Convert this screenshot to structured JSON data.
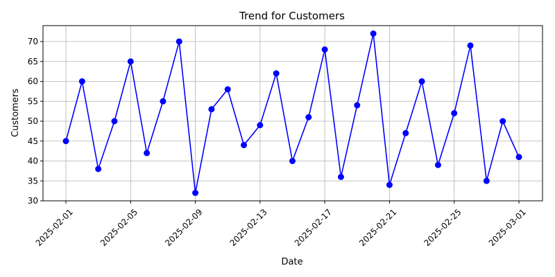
{
  "chart_data": {
    "type": "line",
    "title": "Trend for Customers",
    "xlabel": "Date",
    "ylabel": "Customers",
    "x": [
      "2025-02-01",
      "2025-02-02",
      "2025-02-03",
      "2025-02-04",
      "2025-02-05",
      "2025-02-06",
      "2025-02-07",
      "2025-02-08",
      "2025-02-09",
      "2025-02-10",
      "2025-02-11",
      "2025-02-12",
      "2025-02-13",
      "2025-02-14",
      "2025-02-15",
      "2025-02-16",
      "2025-02-17",
      "2025-02-18",
      "2025-02-19",
      "2025-02-20",
      "2025-02-21",
      "2025-02-22",
      "2025-02-23",
      "2025-02-24",
      "2025-02-25",
      "2025-02-26",
      "2025-02-27",
      "2025-02-28",
      "2025-03-01"
    ],
    "series": [
      {
        "values": [
          45,
          60,
          38,
          50,
          65,
          42,
          55,
          70,
          32,
          53,
          58,
          44,
          49,
          62,
          40,
          51,
          68,
          36,
          54,
          72,
          34,
          47,
          60,
          39,
          52,
          69,
          35,
          50,
          41
        ],
        "color": "#0000ff",
        "marker": "circle"
      }
    ],
    "x_ticks": [
      "2025-02-01",
      "2025-02-05",
      "2025-02-09",
      "2025-02-13",
      "2025-02-17",
      "2025-02-21",
      "2025-02-25",
      "2025-03-01"
    ],
    "y_ticks": [
      30,
      35,
      40,
      45,
      50,
      55,
      60,
      65,
      70
    ],
    "ylim": [
      30,
      74
    ],
    "grid": true,
    "legend": "none"
  }
}
